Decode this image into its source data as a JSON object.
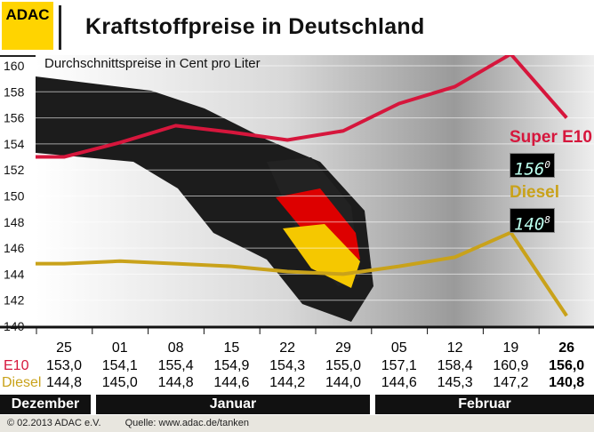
{
  "header": {
    "logo": "ADAC",
    "title": "Kraftstoffpreise in Deutschland"
  },
  "legend": {
    "e10": "Super E10",
    "diesel": "Diesel",
    "e10_display": "156",
    "e10_display_dec": "0",
    "diesel_display": "140",
    "diesel_display_dec": "8"
  },
  "table": {
    "e10_label": "E10",
    "diesel_label": "Diesel"
  },
  "months": [
    "Dezember",
    "Januar",
    "Februar"
  ],
  "footer": {
    "copyright": "© 02.2013  ADAC e.V.",
    "source": "Quelle: www.adac.de/tanken"
  },
  "colors": {
    "e10": "#d6163c",
    "diesel": "#c9a21a",
    "logo": "#ffd400"
  },
  "chart_data": {
    "type": "line",
    "title": "Durchschnittspreise in Cent pro Liter",
    "categories": [
      "25",
      "01",
      "08",
      "15",
      "22",
      "29",
      "05",
      "12",
      "19",
      "26"
    ],
    "series": [
      {
        "name": "E10",
        "values": [
          "153,0",
          "154,1",
          "155,4",
          "154,9",
          "154,3",
          "155,0",
          "157,1",
          "158,4",
          "160,9",
          "156,0"
        ]
      },
      {
        "name": "Diesel",
        "values": [
          "144,8",
          "145,0",
          "144,8",
          "144,6",
          "144,2",
          "144,0",
          "144,6",
          "145,3",
          "147,2",
          "140,8"
        ]
      }
    ],
    "ylim": [
      140,
      160
    ],
    "yticks": [
      "160",
      "158",
      "156",
      "154",
      "152",
      "150",
      "148",
      "146",
      "144",
      "142",
      "140"
    ],
    "grid": true
  }
}
